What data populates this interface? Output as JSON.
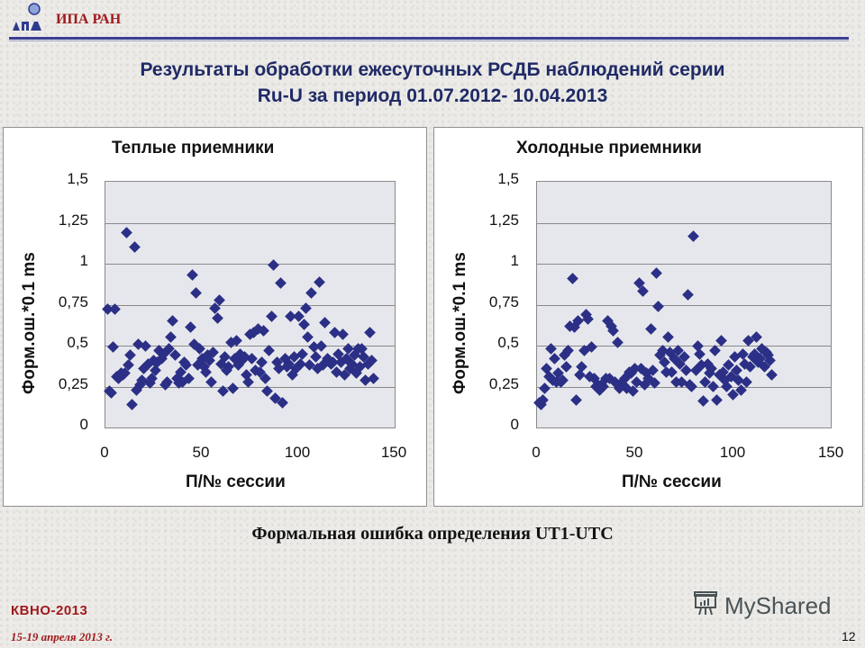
{
  "header": {
    "org": "ИПА РАН",
    "logo_icon": "ipa-logo-icon"
  },
  "title": {
    "line1": "Результаты обработки ежесуточных РСДБ наблюдений серии",
    "line2": "Ru-U за период 01.07.2012- 10.04.2013"
  },
  "caption": "Формальная ошибка определения UT1-UTC",
  "footer": {
    "conference": "КВНО-2013",
    "dates": "15-19  апреля  2013 г.",
    "watermark": "MyShared",
    "page": "12"
  },
  "colors": {
    "marker": "#2b2f86",
    "plot_bg": "#e6e7ec",
    "title": "#1f2a66",
    "accent_red": "#a0191c"
  },
  "chart_data": [
    {
      "type": "scatter",
      "title": "Теплые приемники",
      "xlabel": "П/№  сессии",
      "ylabel": "Форм.ош.*0.1 ms",
      "xlim": [
        0,
        150
      ],
      "ylim": [
        0,
        1.5
      ],
      "xticks": [
        "0",
        "50",
        "100",
        "150"
      ],
      "yticks": [
        "0",
        "0,25",
        "0,5",
        "0,75",
        "1",
        "1,25",
        "1,5"
      ],
      "grid": true,
      "marker": "diamond",
      "points": [
        [
          1,
          0.72
        ],
        [
          2,
          0.22
        ],
        [
          3,
          0.21
        ],
        [
          4,
          0.49
        ],
        [
          5,
          0.72
        ],
        [
          6,
          0.31
        ],
        [
          7,
          0.3
        ],
        [
          8,
          0.33
        ],
        [
          9,
          0.32
        ],
        [
          10,
          0.33
        ],
        [
          11,
          1.19
        ],
        [
          12,
          0.38
        ],
        [
          13,
          0.44
        ],
        [
          14,
          0.14
        ],
        [
          15,
          1.1
        ],
        [
          16,
          0.23
        ],
        [
          17,
          0.51
        ],
        [
          18,
          0.26
        ],
        [
          19,
          0.29
        ],
        [
          20,
          0.36
        ],
        [
          21,
          0.5
        ],
        [
          22,
          0.39
        ],
        [
          23,
          0.27
        ],
        [
          24,
          0.3
        ],
        [
          25,
          0.41
        ],
        [
          26,
          0.35
        ],
        [
          27,
          0.4
        ],
        [
          28,
          0.47
        ],
        [
          29,
          0.42
        ],
        [
          30,
          0.45
        ],
        [
          31,
          0.26
        ],
        [
          32,
          0.28
        ],
        [
          33,
          0.48
        ],
        [
          34,
          0.55
        ],
        [
          35,
          0.65
        ],
        [
          36,
          0.44
        ],
        [
          37,
          0.3
        ],
        [
          38,
          0.27
        ],
        [
          39,
          0.34
        ],
        [
          40,
          0.28
        ],
        [
          41,
          0.4
        ],
        [
          42,
          0.38
        ],
        [
          43,
          0.3
        ],
        [
          44,
          0.61
        ],
        [
          45,
          0.93
        ],
        [
          46,
          0.51
        ],
        [
          47,
          0.82
        ],
        [
          48,
          0.38
        ],
        [
          49,
          0.48
        ],
        [
          50,
          0.42
        ],
        [
          51,
          0.37
        ],
        [
          52,
          0.34
        ],
        [
          53,
          0.44
        ],
        [
          54,
          0.41
        ],
        [
          55,
          0.28
        ],
        [
          56,
          0.46
        ],
        [
          57,
          0.73
        ],
        [
          58,
          0.67
        ],
        [
          59,
          0.78
        ],
        [
          60,
          0.39
        ],
        [
          61,
          0.22
        ],
        [
          62,
          0.43
        ],
        [
          63,
          0.35
        ],
        [
          64,
          0.37
        ],
        [
          65,
          0.52
        ],
        [
          66,
          0.24
        ],
        [
          67,
          0.42
        ],
        [
          68,
          0.53
        ],
        [
          69,
          0.38
        ],
        [
          70,
          0.45
        ],
        [
          71,
          0.41
        ],
        [
          72,
          0.43
        ],
        [
          73,
          0.32
        ],
        [
          74,
          0.28
        ],
        [
          75,
          0.57
        ],
        [
          76,
          0.42
        ],
        [
          77,
          0.58
        ],
        [
          78,
          0.35
        ],
        [
          79,
          0.6
        ],
        [
          80,
          0.34
        ],
        [
          81,
          0.4
        ],
        [
          82,
          0.59
        ],
        [
          83,
          0.3
        ],
        [
          84,
          0.22
        ],
        [
          85,
          0.47
        ],
        [
          86,
          0.68
        ],
        [
          87,
          0.99
        ],
        [
          88,
          0.18
        ],
        [
          89,
          0.4
        ],
        [
          90,
          0.36
        ],
        [
          91,
          0.88
        ],
        [
          92,
          0.15
        ],
        [
          93,
          0.42
        ],
        [
          94,
          0.37
        ],
        [
          95,
          0.39
        ],
        [
          96,
          0.68
        ],
        [
          97,
          0.32
        ],
        [
          98,
          0.43
        ],
        [
          99,
          0.36
        ],
        [
          100,
          0.68
        ],
        [
          101,
          0.39
        ],
        [
          102,
          0.45
        ],
        [
          103,
          0.63
        ],
        [
          104,
          0.73
        ],
        [
          105,
          0.55
        ],
        [
          106,
          0.38
        ],
        [
          107,
          0.82
        ],
        [
          108,
          0.49
        ],
        [
          109,
          0.43
        ],
        [
          110,
          0.36
        ],
        [
          111,
          0.89
        ],
        [
          112,
          0.5
        ],
        [
          113,
          0.38
        ],
        [
          114,
          0.64
        ],
        [
          115,
          0.42
        ],
        [
          116,
          0.41
        ],
        [
          117,
          0.39
        ],
        [
          118,
          0.4
        ],
        [
          119,
          0.58
        ],
        [
          120,
          0.34
        ],
        [
          121,
          0.45
        ],
        [
          122,
          0.4
        ],
        [
          123,
          0.57
        ],
        [
          124,
          0.32
        ],
        [
          125,
          0.42
        ],
        [
          126,
          0.48
        ],
        [
          127,
          0.36
        ],
        [
          128,
          0.39
        ],
        [
          129,
          0.44
        ],
        [
          130,
          0.33
        ],
        [
          131,
          0.48
        ],
        [
          132,
          0.37
        ],
        [
          133,
          0.48
        ],
        [
          134,
          0.43
        ],
        [
          135,
          0.29
        ],
        [
          136,
          0.39
        ],
        [
          137,
          0.58
        ],
        [
          138,
          0.41
        ],
        [
          139,
          0.3
        ]
      ]
    },
    {
      "type": "scatter",
      "title": "Холодные приемники",
      "xlabel": "П/№ сессии",
      "ylabel": "Форм.ош.*0.1 ms",
      "xlim": [
        0,
        150
      ],
      "ylim": [
        0,
        1.5
      ],
      "xticks": [
        "0",
        "50",
        "100",
        "150"
      ],
      "yticks": [
        "0",
        "0,25",
        "0,5",
        "0,75",
        "1",
        "1,25",
        "1,5"
      ],
      "grid": true,
      "marker": "diamond",
      "points": [
        [
          1,
          0.15
        ],
        [
          2,
          0.14
        ],
        [
          3,
          0.17
        ],
        [
          4,
          0.24
        ],
        [
          5,
          0.36
        ],
        [
          6,
          0.31
        ],
        [
          7,
          0.48
        ],
        [
          8,
          0.29
        ],
        [
          9,
          0.42
        ],
        [
          10,
          0.28
        ],
        [
          11,
          0.33
        ],
        [
          12,
          0.28
        ],
        [
          13,
          0.29
        ],
        [
          14,
          0.44
        ],
        [
          15,
          0.37
        ],
        [
          16,
          0.47
        ],
        [
          17,
          0.62
        ],
        [
          18,
          0.91
        ],
        [
          19,
          0.61
        ],
        [
          20,
          0.17
        ],
        [
          21,
          0.65
        ],
        [
          22,
          0.32
        ],
        [
          23,
          0.37
        ],
        [
          24,
          0.47
        ],
        [
          25,
          0.69
        ],
        [
          26,
          0.66
        ],
        [
          27,
          0.31
        ],
        [
          28,
          0.49
        ],
        [
          29,
          0.3
        ],
        [
          30,
          0.25
        ],
        [
          31,
          0.26
        ],
        [
          32,
          0.23
        ],
        [
          33,
          0.26
        ],
        [
          34,
          0.25
        ],
        [
          35,
          0.3
        ],
        [
          36,
          0.65
        ],
        [
          37,
          0.3
        ],
        [
          38,
          0.62
        ],
        [
          39,
          0.59
        ],
        [
          40,
          0.28
        ],
        [
          41,
          0.52
        ],
        [
          42,
          0.24
        ],
        [
          43,
          0.27
        ],
        [
          44,
          0.26
        ],
        [
          45,
          0.3
        ],
        [
          46,
          0.24
        ],
        [
          47,
          0.34
        ],
        [
          48,
          0.33
        ],
        [
          49,
          0.22
        ],
        [
          50,
          0.36
        ],
        [
          51,
          0.28
        ],
        [
          52,
          0.88
        ],
        [
          53,
          0.36
        ],
        [
          54,
          0.83
        ],
        [
          55,
          0.26
        ],
        [
          56,
          0.33
        ],
        [
          57,
          0.3
        ],
        [
          58,
          0.6
        ],
        [
          59,
          0.35
        ],
        [
          60,
          0.27
        ],
        [
          61,
          0.94
        ],
        [
          62,
          0.74
        ],
        [
          63,
          0.44
        ],
        [
          64,
          0.47
        ],
        [
          65,
          0.4
        ],
        [
          66,
          0.34
        ],
        [
          67,
          0.55
        ],
        [
          68,
          0.46
        ],
        [
          69,
          0.34
        ],
        [
          70,
          0.42
        ],
        [
          71,
          0.28
        ],
        [
          72,
          0.47
        ],
        [
          73,
          0.39
        ],
        [
          74,
          0.28
        ],
        [
          75,
          0.43
        ],
        [
          76,
          0.35
        ],
        [
          77,
          0.81
        ],
        [
          78,
          0.26
        ],
        [
          79,
          0.25
        ],
        [
          80,
          1.17
        ],
        [
          81,
          0.35
        ],
        [
          82,
          0.5
        ],
        [
          83,
          0.45
        ],
        [
          84,
          0.38
        ],
        [
          85,
          0.16
        ],
        [
          86,
          0.28
        ],
        [
          87,
          0.39
        ],
        [
          88,
          0.33
        ],
        [
          89,
          0.36
        ],
        [
          90,
          0.25
        ],
        [
          91,
          0.47
        ],
        [
          92,
          0.17
        ],
        [
          93,
          0.32
        ],
        [
          94,
          0.53
        ],
        [
          95,
          0.34
        ],
        [
          96,
          0.29
        ],
        [
          97,
          0.25
        ],
        [
          98,
          0.38
        ],
        [
          99,
          0.31
        ],
        [
          100,
          0.2
        ],
        [
          101,
          0.43
        ],
        [
          102,
          0.35
        ],
        [
          103,
          0.29
        ],
        [
          104,
          0.23
        ],
        [
          105,
          0.45
        ],
        [
          106,
          0.39
        ],
        [
          107,
          0.28
        ],
        [
          108,
          0.53
        ],
        [
          109,
          0.37
        ],
        [
          110,
          0.43
        ],
        [
          111,
          0.45
        ],
        [
          112,
          0.55
        ],
        [
          113,
          0.4
        ],
        [
          114,
          0.42
        ],
        [
          115,
          0.48
        ],
        [
          116,
          0.37
        ],
        [
          117,
          0.46
        ],
        [
          118,
          0.44
        ],
        [
          119,
          0.41
        ],
        [
          120,
          0.32
        ]
      ]
    }
  ]
}
